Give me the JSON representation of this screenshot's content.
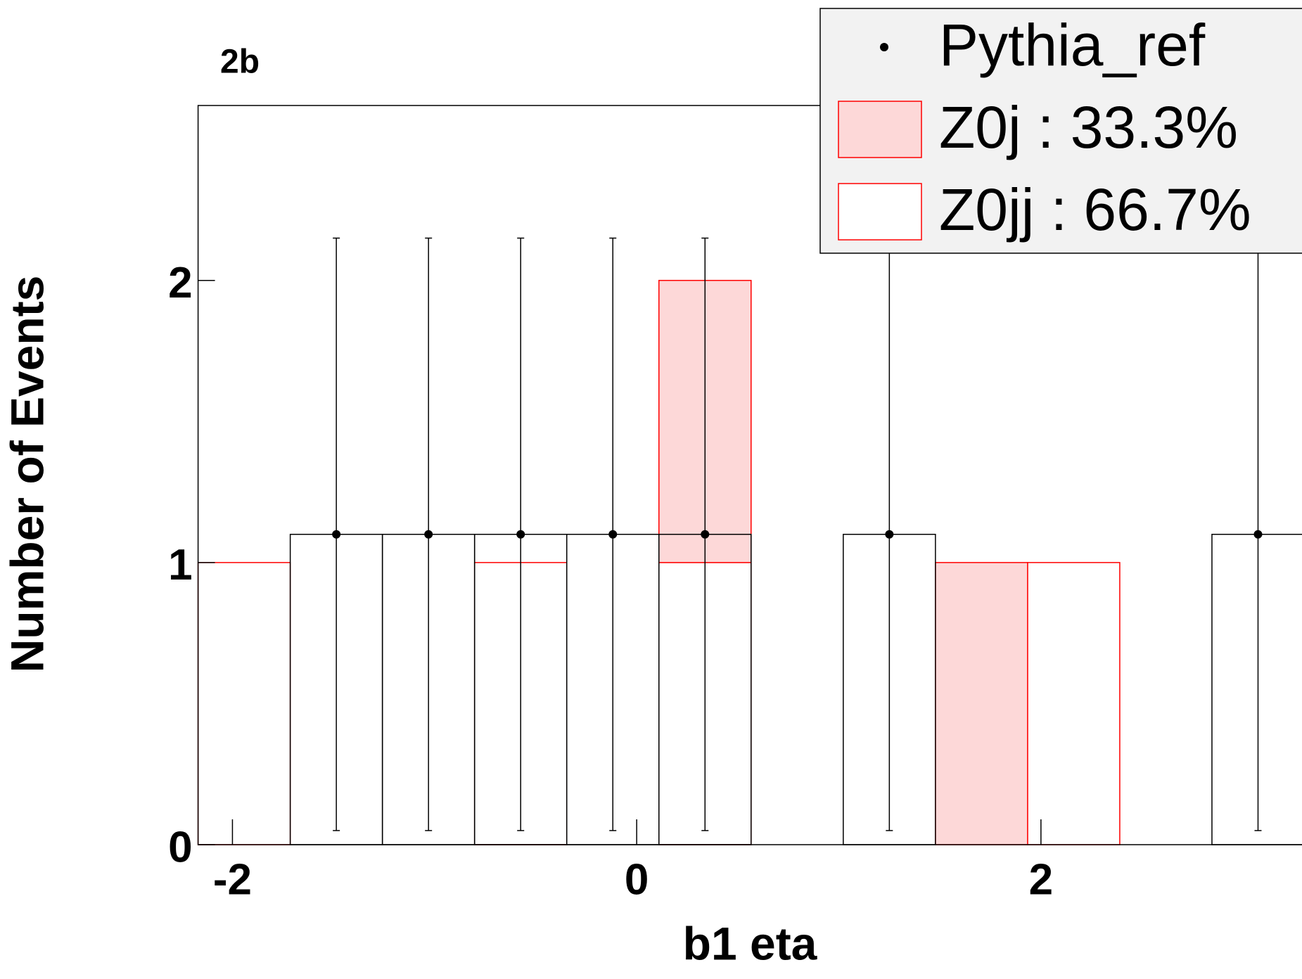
{
  "chart_data": {
    "type": "histogram",
    "title": "2b",
    "x_label": "b1 eta",
    "y_label": "Number of Events",
    "bins": [
      -2.17,
      -1.714,
      -1.258,
      -0.802,
      -0.346,
      0.11,
      0.566,
      1.022,
      1.478,
      1.934,
      2.39,
      2.846,
      3.302
    ],
    "xlim": [
      -2.17,
      3.302
    ],
    "ylim": [
      0,
      2.62
    ],
    "xticks": [
      -2,
      0,
      2
    ],
    "yticks": [
      0,
      1,
      2
    ],
    "stacked": true,
    "series": [
      {
        "name": "Z0jj : 66.7%",
        "color": "#ff0000",
        "fill": "#ffffff",
        "values": [
          1,
          0,
          0,
          1,
          0,
          1,
          0,
          0,
          0,
          1,
          0,
          0
        ]
      },
      {
        "name": "Z0j : 33.3%",
        "color": "#ff0000",
        "fill": "#fdd8d8",
        "values": [
          0,
          0,
          0,
          0,
          0,
          1,
          0,
          0,
          1,
          0,
          0,
          0
        ]
      },
      {
        "name": "Pythia_ref",
        "color": "#000000",
        "reference": true,
        "values": [
          0,
          1.1,
          1.1,
          1.1,
          1.1,
          1.1,
          0,
          1.1,
          0,
          0,
          0,
          1.1
        ],
        "errors": [
          0,
          1.05,
          1.05,
          1.05,
          1.05,
          1.05,
          0,
          1.05,
          0,
          0,
          0,
          1.05
        ]
      }
    ]
  }
}
